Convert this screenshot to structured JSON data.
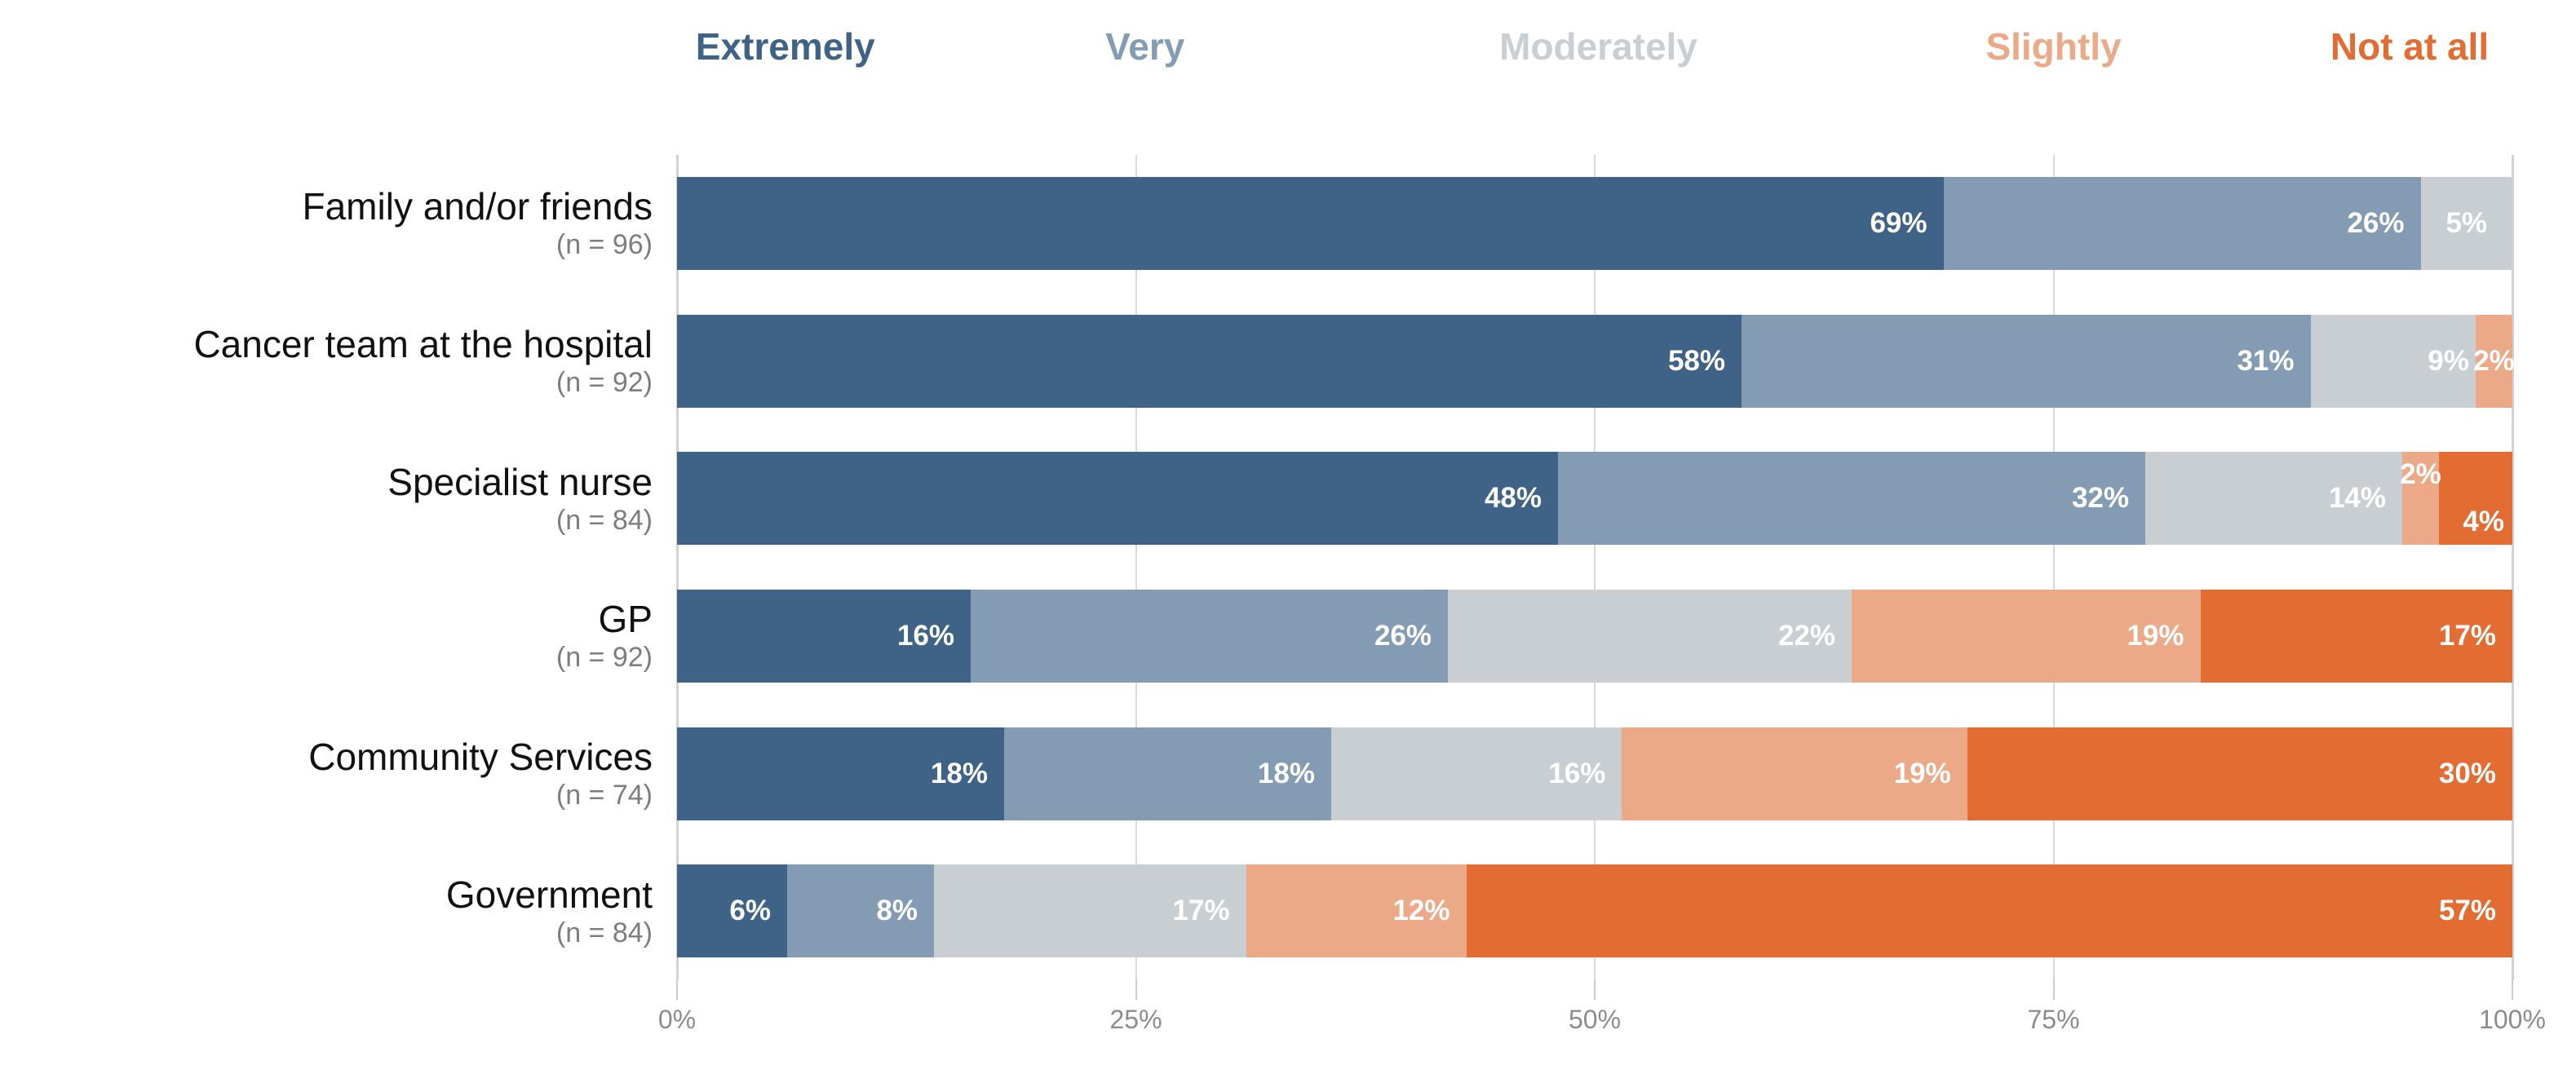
{
  "chart_data": {
    "type": "bar",
    "orientation": "horizontal",
    "stacked": true,
    "title": "",
    "xlabel": "",
    "ylabel": "",
    "x_axis": {
      "range": [
        0,
        100
      ],
      "tick_labels": [
        "0%",
        "25%",
        "50%",
        "75%",
        "100%"
      ],
      "tick_values": [
        0,
        25,
        50,
        75,
        100
      ],
      "grid": true
    },
    "legend_position": "top",
    "legend": [
      {
        "label": "Extremely",
        "color": "#3E6387",
        "x_percent": 5.9
      },
      {
        "label": "Very",
        "color": "#849CB3",
        "x_percent": 25.5
      },
      {
        "label": "Moderately",
        "color": "#C9CED3",
        "x_percent": 50.2
      },
      {
        "label": "Slightly",
        "color": "#ECA987",
        "x_percent": 75.0
      },
      {
        "label": "Not at all",
        "color": "#E26C31",
        "x_percent": 94.4
      }
    ],
    "rows": [
      {
        "label": "Family and/or friends",
        "n": "(n = 96)",
        "segments": [
          {
            "series": 0,
            "value": 69,
            "label": "69%",
            "label_pos": "right"
          },
          {
            "series": 1,
            "value": 26,
            "label": "26%",
            "label_pos": "right"
          },
          {
            "series": 2,
            "value": 5,
            "label": "5%",
            "label_pos": "center"
          }
        ]
      },
      {
        "label": "Cancer team at the hospital",
        "n": "(n = 92)",
        "segments": [
          {
            "series": 0,
            "value": 58,
            "label": "58%",
            "label_pos": "right"
          },
          {
            "series": 1,
            "value": 31,
            "label": "31%",
            "label_pos": "right"
          },
          {
            "series": 2,
            "value": 9,
            "label": "9%",
            "label_pos": "right-tight"
          },
          {
            "series": 3,
            "value": 2,
            "label": "2%",
            "label_pos": "center"
          }
        ]
      },
      {
        "label": "Specialist nurse",
        "n": "(n = 84)",
        "segments": [
          {
            "series": 0,
            "value": 48,
            "label": "48%",
            "label_pos": "right"
          },
          {
            "series": 1,
            "value": 32,
            "label": "32%",
            "label_pos": "right"
          },
          {
            "series": 2,
            "value": 14,
            "label": "14%",
            "label_pos": "right"
          },
          {
            "series": 3,
            "value": 2,
            "label": "2%",
            "label_pos": "top"
          },
          {
            "series": 4,
            "value": 4,
            "label": "4%",
            "label_pos": "bottom"
          }
        ]
      },
      {
        "label": "GP",
        "n": "(n = 92)",
        "segments": [
          {
            "series": 0,
            "value": 16,
            "label": "16%",
            "label_pos": "right"
          },
          {
            "series": 1,
            "value": 26,
            "label": "26%",
            "label_pos": "right"
          },
          {
            "series": 2,
            "value": 22,
            "label": "22%",
            "label_pos": "right"
          },
          {
            "series": 3,
            "value": 19,
            "label": "19%",
            "label_pos": "right"
          },
          {
            "series": 4,
            "value": 17,
            "label": "17%",
            "label_pos": "right"
          }
        ]
      },
      {
        "label": "Community Services",
        "n": "(n = 74)",
        "segments": [
          {
            "series": 0,
            "value": 18,
            "label": "18%",
            "label_pos": "right"
          },
          {
            "series": 1,
            "value": 18,
            "label": "18%",
            "label_pos": "right"
          },
          {
            "series": 2,
            "value": 16,
            "label": "16%",
            "label_pos": "right"
          },
          {
            "series": 3,
            "value": 19,
            "label": "19%",
            "label_pos": "right"
          },
          {
            "series": 4,
            "value": 30,
            "label": "30%",
            "label_pos": "right"
          }
        ]
      },
      {
        "label": "Government",
        "n": "(n = 84)",
        "segments": [
          {
            "series": 0,
            "value": 6,
            "label": "6%",
            "label_pos": "right"
          },
          {
            "series": 1,
            "value": 8,
            "label": "8%",
            "label_pos": "right"
          },
          {
            "series": 2,
            "value": 17,
            "label": "17%",
            "label_pos": "right"
          },
          {
            "series": 3,
            "value": 12,
            "label": "12%",
            "label_pos": "right"
          },
          {
            "series": 4,
            "value": 57,
            "label": "57%",
            "label_pos": "right"
          }
        ]
      }
    ]
  }
}
